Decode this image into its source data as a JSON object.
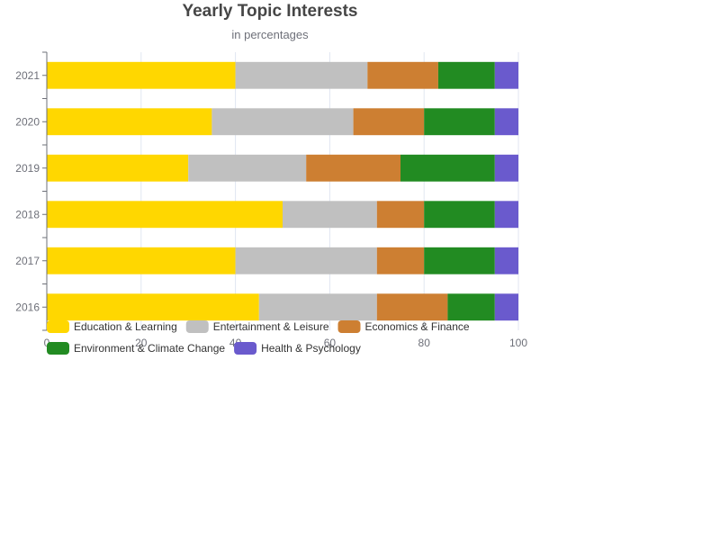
{
  "chart_data": {
    "type": "bar",
    "orientation": "horizontal",
    "stacked": true,
    "title": "Yearly Topic Interests",
    "subtitle": "in percentages",
    "categories": [
      "2016",
      "2017",
      "2018",
      "2019",
      "2020",
      "2021"
    ],
    "xlim": [
      0,
      100
    ],
    "xticks": [
      0,
      20,
      40,
      60,
      80,
      100
    ],
    "grid": "vertical",
    "legend_position": "bottom-left",
    "series": [
      {
        "name": "Education & Learning",
        "color": "#FFD700",
        "values": [
          45,
          40,
          50,
          30,
          35,
          40
        ]
      },
      {
        "name": "Entertainment & Leisure",
        "color": "#C0C0C0",
        "values": [
          25,
          30,
          20,
          25,
          30,
          28
        ]
      },
      {
        "name": "Economics & Finance",
        "color": "#CD7F32",
        "values": [
          15,
          10,
          10,
          20,
          15,
          15
        ]
      },
      {
        "name": "Environment & Climate Change",
        "color": "#228B22",
        "values": [
          10,
          15,
          15,
          20,
          15,
          12
        ]
      },
      {
        "name": "Health & Psychology",
        "color": "#6A5ACD",
        "values": [
          5,
          5,
          5,
          5,
          5,
          5
        ]
      }
    ]
  }
}
